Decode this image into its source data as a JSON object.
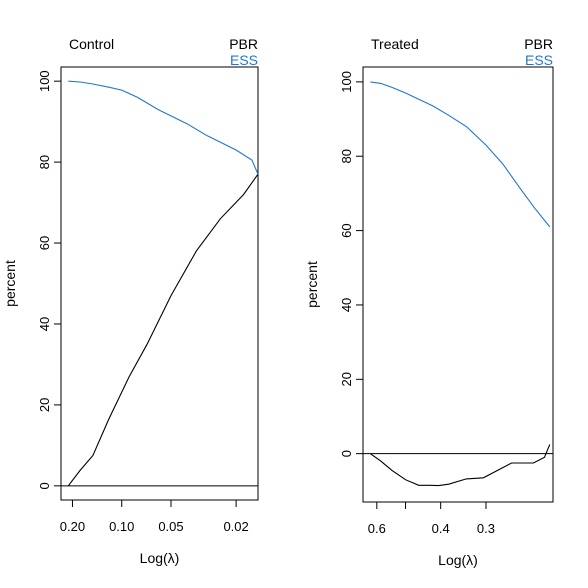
{
  "chart_data": [
    {
      "type": "line",
      "title": "Control",
      "xlabel": "Log(λ)",
      "ylabel": "percent",
      "ylim": [
        -3.5,
        103.5
      ],
      "x_direction": "decreasing",
      "xticks": [
        0.2,
        0.1,
        0.05,
        0.02
      ],
      "xtick_labels": [
        "0.20",
        "0.10",
        "0.05",
        "0.02"
      ],
      "yticks": [
        0,
        20,
        40,
        60,
        80,
        100
      ],
      "ytick_labels": [
        "0",
        "20",
        "40",
        "60",
        "80",
        "100"
      ],
      "legend": {
        "position": "top-right",
        "entries": [
          {
            "label": "PBR",
            "color": "#000000"
          },
          {
            "label": "ESS",
            "color": "#1f77d0"
          }
        ]
      },
      "reference_line": {
        "y": 0
      },
      "series": [
        {
          "name": "PBR",
          "color": "#000000",
          "x": [
            0.212,
            0.18,
            0.15,
            0.12,
            0.09,
            0.07,
            0.05,
            0.035,
            0.025,
            0.018,
            0.0147
          ],
          "y": [
            0,
            3.8,
            7.5,
            16.5,
            27,
            35,
            47,
            58,
            66,
            72,
            77
          ]
        },
        {
          "name": "ESS",
          "color": "#1f77d0",
          "x": [
            0.212,
            0.18,
            0.15,
            0.12,
            0.1,
            0.08,
            0.06,
            0.04,
            0.03,
            0.02,
            0.016,
            0.0147
          ],
          "y": [
            100,
            99.8,
            99.3,
            98.5,
            97.8,
            96,
            93,
            89.5,
            86.5,
            83,
            80.5,
            77
          ]
        }
      ]
    },
    {
      "type": "line",
      "title": "Treated",
      "xlabel": "Log(λ)",
      "ylabel": "percent",
      "ylim": [
        -13,
        104
      ],
      "x_direction": "decreasing",
      "xticks": [
        0.6,
        0.5,
        0.4,
        0.3
      ],
      "xtick_labels": [
        "0.6",
        "",
        "0.4",
        "0.3"
      ],
      "yticks": [
        0,
        20,
        40,
        60,
        80,
        100
      ],
      "ytick_labels": [
        "0",
        "20",
        "40",
        "60",
        "80",
        "100"
      ],
      "legend": {
        "position": "top-right",
        "entries": [
          {
            "label": "PBR",
            "color": "#000000"
          },
          {
            "label": "ESS",
            "color": "#1f77d0"
          }
        ]
      },
      "reference_line": {
        "y": 0
      },
      "series": [
        {
          "name": "PBR",
          "color": "#000000",
          "x": [
            0.625,
            0.585,
            0.545,
            0.5,
            0.46,
            0.43,
            0.405,
            0.38,
            0.34,
            0.305,
            0.285,
            0.255,
            0.222,
            0.207,
            0.2
          ],
          "y": [
            0,
            -2,
            -4.5,
            -7,
            -8.5,
            -8.5,
            -8.6,
            -8.2,
            -6.8,
            -6.5,
            -5,
            -2.5,
            -2.5,
            -1,
            2.5
          ]
        },
        {
          "name": "ESS",
          "color": "#1f77d0",
          "x": [
            0.625,
            0.585,
            0.545,
            0.5,
            0.46,
            0.42,
            0.38,
            0.34,
            0.3,
            0.27,
            0.24,
            0.22,
            0.2
          ],
          "y": [
            100,
            99.6,
            98.5,
            97,
            95.3,
            93.5,
            91,
            88,
            83,
            78,
            71,
            66,
            61
          ]
        }
      ]
    }
  ]
}
